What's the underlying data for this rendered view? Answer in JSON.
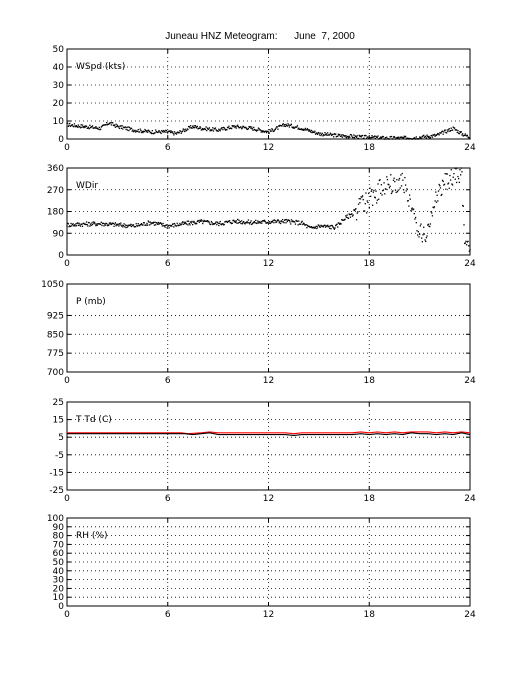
{
  "title": "Juneau HNZ Meteogram:      June  7, 2000",
  "chart_data": [
    {
      "type": "scatter",
      "ylabel": "WSpd (kts)",
      "xlim": [
        0,
        24
      ],
      "ylim": [
        0,
        50
      ],
      "xticks": [
        0,
        6,
        12,
        18,
        24
      ],
      "yticks": [
        0,
        10,
        20,
        30,
        40,
        50
      ],
      "grid": "dotted",
      "series": [
        {
          "color": "#000000",
          "x": [
            0,
            1,
            2,
            2.5,
            3,
            4,
            5,
            6,
            6.5,
            7,
            7.5,
            8,
            9,
            10,
            11,
            12,
            12.5,
            13,
            14,
            15,
            16,
            17,
            17.5,
            18,
            19,
            20,
            21,
            22,
            22.5,
            23,
            23.5,
            24
          ],
          "y": [
            8,
            7,
            6,
            9,
            7,
            5,
            4,
            4,
            3,
            5,
            7,
            6,
            5,
            7,
            6,
            4,
            6,
            8,
            6,
            3,
            2,
            1.5,
            1,
            1,
            0.5,
            0.5,
            1,
            2,
            4,
            6,
            3,
            1
          ]
        }
      ]
    },
    {
      "type": "scatter",
      "ylabel": "WDir",
      "xlim": [
        0,
        24
      ],
      "ylim": [
        0,
        360
      ],
      "xticks": [
        0,
        6,
        12,
        18,
        24
      ],
      "yticks": [
        0,
        90,
        180,
        270,
        360
      ],
      "grid": "dotted",
      "series": [
        {
          "color": "#000000",
          "x": [
            0,
            1,
            2,
            3,
            4,
            5,
            6,
            7,
            8,
            9,
            10,
            11,
            12,
            13,
            14,
            14.5,
            15,
            16,
            16.5,
            17,
            17.5,
            18,
            18.5,
            19,
            19.5,
            20,
            20.5,
            21,
            21.5,
            22,
            22.5,
            23,
            23.5,
            23.7,
            24
          ],
          "y": [
            125,
            128,
            130,
            125,
            120,
            135,
            120,
            130,
            138,
            130,
            140,
            135,
            138,
            140,
            132,
            110,
            120,
            115,
            150,
            170,
            200,
            230,
            260,
            300,
            280,
            320,
            200,
            80,
            100,
            250,
            300,
            320,
            340,
            30,
            20
          ]
        }
      ]
    },
    {
      "type": "line",
      "ylabel": "P (mb)",
      "xlim": [
        0,
        24
      ],
      "ylim": [
        700,
        1050
      ],
      "xticks": [
        0,
        6,
        12,
        18,
        24
      ],
      "yticks": [
        700,
        775,
        850,
        925,
        1050
      ],
      "grid": "dotted",
      "series": []
    },
    {
      "type": "line",
      "ylabel": "T Td (C)",
      "xlim": [
        0,
        24
      ],
      "ylim": [
        -25,
        25
      ],
      "xticks": [
        0,
        6,
        12,
        18,
        24
      ],
      "yticks": [
        -25,
        -15,
        -5,
        5,
        15,
        25
      ],
      "grid": "dotted",
      "series": [
        {
          "color": "#ff0000",
          "x": [
            0,
            2,
            4,
            6,
            6.8,
            7.2,
            8,
            8.5,
            9,
            10,
            11,
            12,
            13,
            13.5,
            14,
            15,
            16,
            17,
            17.5,
            18,
            18.5,
            19,
            19.5,
            20,
            20.5,
            21,
            21.5,
            22,
            22.5,
            23,
            23.5,
            24
          ],
          "y": [
            7.5,
            7.5,
            7.5,
            7.5,
            7.5,
            7.0,
            7.5,
            8.0,
            7.5,
            7.5,
            7.5,
            7.5,
            7.5,
            7.0,
            7.5,
            7.5,
            7.5,
            7.5,
            8.0,
            7.5,
            8.0,
            7.5,
            8.0,
            7.5,
            8.0,
            8.0,
            8.0,
            7.5,
            8.0,
            7.5,
            8.0,
            7.5
          ]
        },
        {
          "color": "#000000",
          "x": [
            0,
            2,
            4,
            6,
            7,
            7.5,
            8,
            8.5,
            9,
            10,
            11,
            12,
            13,
            13.5,
            14,
            15,
            16,
            17,
            17.5,
            18,
            18.5,
            19,
            19.5,
            20,
            20.5,
            21,
            21.5,
            22,
            22.5,
            23,
            23.5,
            24
          ],
          "y": [
            7.0,
            7.0,
            7.0,
            7.0,
            7.0,
            6.5,
            7.0,
            7.5,
            6.5,
            6.5,
            6.5,
            6.5,
            6.5,
            6.0,
            6.5,
            6.5,
            6.5,
            6.5,
            7.0,
            6.5,
            7.0,
            6.5,
            7.0,
            6.5,
            7.5,
            7.0,
            7.0,
            6.5,
            7.0,
            6.5,
            7.5,
            6.5
          ]
        }
      ]
    },
    {
      "type": "line",
      "ylabel": "RH (%)",
      "xlim": [
        0,
        24
      ],
      "ylim": [
        0,
        100
      ],
      "xticks": [
        0,
        6,
        12,
        18,
        24
      ],
      "yticks": [
        0,
        10,
        20,
        30,
        40,
        50,
        60,
        70,
        80,
        90,
        100
      ],
      "grid": "dotted",
      "series": []
    }
  ]
}
